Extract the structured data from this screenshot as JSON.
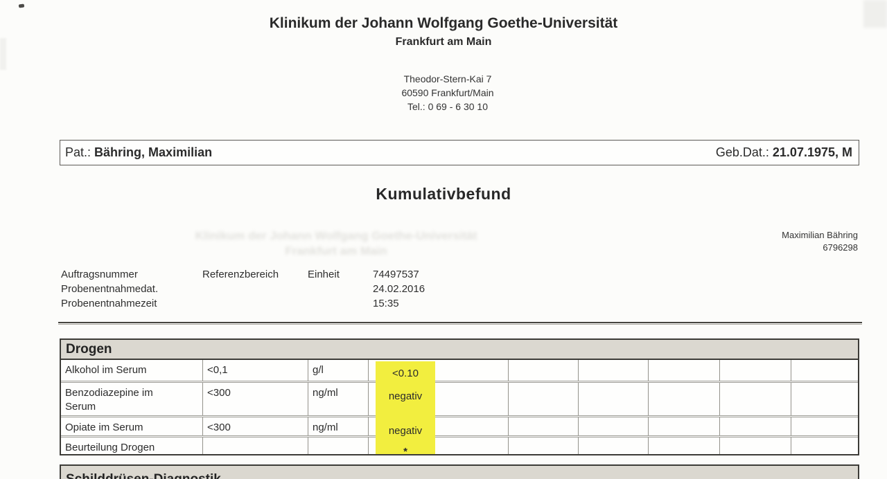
{
  "header": {
    "clinic_name": "Klinikum der Johann Wolfgang Goethe-Universität",
    "clinic_city": "Frankfurt am Main",
    "address_lines": [
      "Theodor-Stern-Kai 7",
      "60590 Frankfurt/Main",
      "Tel.: 0 69 - 6 30 10"
    ],
    "report_title": "Kumulativbefund"
  },
  "patient_bar": {
    "label": "Pat.:",
    "name": "Bähring, Maximilian",
    "dob_label": "Geb.Dat.:",
    "dob_value": "21.07.1975, M"
  },
  "patient_info": {
    "name": "Maximilian Bähring",
    "id": "6796298"
  },
  "specimen": {
    "row_labels": [
      "Auftragsnummer",
      "Probenentnahmedat.",
      "Probenentnahmezeit"
    ],
    "col_reference": "Referenzbereich",
    "col_unit": "Einheit",
    "order_number": "74497537",
    "collection_date": "24.02.2016",
    "collection_time": "15:35"
  },
  "results_table": {
    "section_title": "Drogen",
    "rows": [
      {
        "parameter": "Alkohol im Serum",
        "reference": "<0,1",
        "unit": "g/l",
        "result": "<0.10",
        "highlighted": true
      },
      {
        "parameter": "Benzodiazepine im Serum",
        "reference": "<300",
        "unit": "ng/ml",
        "result": "negativ",
        "highlighted": true
      },
      {
        "parameter": "Opiate im Serum",
        "reference": "<300",
        "unit": "ng/ml",
        "result": "negativ",
        "highlighted": true
      },
      {
        "parameter": "Beurteilung Drogen",
        "reference": "",
        "unit": "",
        "result": "*",
        "highlighted": true
      }
    ]
  },
  "next_section": {
    "title": "Schilddrüsen-Diagnostik"
  },
  "colors": {
    "highlight_yellow": "#f2ee3f",
    "section_band_gray": "#dbd8d0",
    "text": "#2b2b2b"
  }
}
